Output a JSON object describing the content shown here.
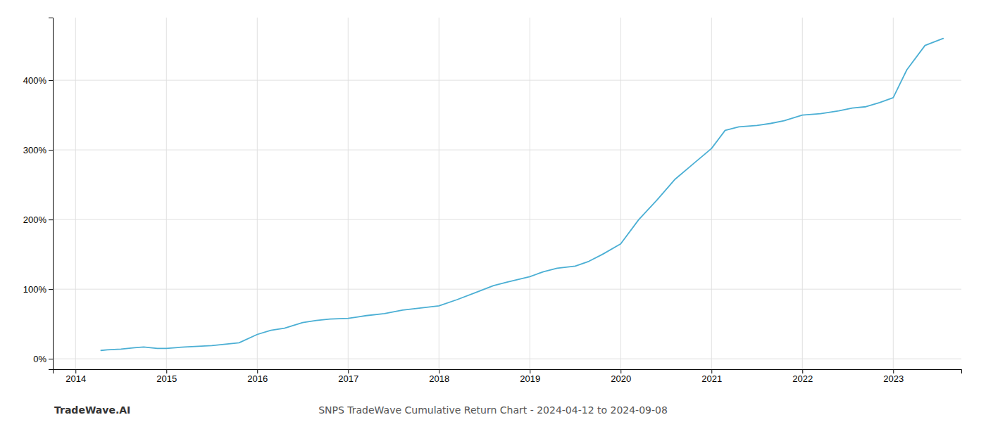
{
  "chart_data": {
    "type": "line",
    "title": "SNPS TradeWave Cumulative Return Chart - 2024-04-12 to 2024-09-08",
    "annotations": [
      "TradeWave.AI"
    ],
    "color": "#4bafd4",
    "grid": true,
    "x": [
      2014.28,
      2014.35,
      2014.5,
      2014.65,
      2014.75,
      2014.9,
      2015.0,
      2015.1,
      2015.2,
      2015.35,
      2015.5,
      2015.65,
      2015.8,
      2016.0,
      2016.15,
      2016.3,
      2016.5,
      2016.65,
      2016.8,
      2017.0,
      2017.2,
      2017.4,
      2017.6,
      2017.8,
      2018.0,
      2018.2,
      2018.4,
      2018.6,
      2018.75,
      2019.0,
      2019.15,
      2019.3,
      2019.5,
      2019.65,
      2019.8,
      2020.0,
      2020.2,
      2020.4,
      2020.6,
      2020.8,
      2021.0,
      2021.15,
      2021.3,
      2021.5,
      2021.65,
      2021.8,
      2022.0,
      2022.2,
      2022.4,
      2022.55,
      2022.7,
      2022.85,
      2023.0,
      2023.15,
      2023.35,
      2023.55
    ],
    "values": [
      12,
      13,
      14,
      16,
      17,
      15,
      15,
      16,
      17,
      18,
      19,
      21,
      23,
      35,
      41,
      44,
      52,
      55,
      57,
      58,
      62,
      65,
      70,
      73,
      76,
      85,
      95,
      105,
      110,
      118,
      125,
      130,
      133,
      140,
      150,
      165,
      200,
      228,
      258,
      280,
      302,
      328,
      333,
      335,
      338,
      342,
      350,
      352,
      356,
      360,
      362,
      368,
      375,
      415,
      450,
      460
    ],
    "xlim": [
      2013.75,
      2023.75
    ],
    "xticks": [
      2014,
      2015,
      2016,
      2017,
      2018,
      2019,
      2020,
      2021,
      2022,
      2023
    ],
    "ylim": [
      -15,
      490
    ],
    "yticks": [
      {
        "value": 0,
        "label": "0%"
      },
      {
        "value": 100,
        "label": "100%"
      },
      {
        "value": 200,
        "label": "200%"
      },
      {
        "value": 300,
        "label": "300%"
      },
      {
        "value": 400,
        "label": "400%"
      }
    ]
  }
}
